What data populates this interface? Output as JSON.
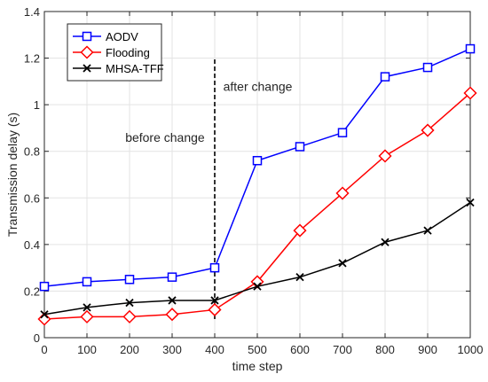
{
  "chart_data": {
    "type": "line",
    "xlabel": "time step",
    "ylabel": "Transmission delay (s)",
    "xlim": [
      0,
      1000
    ],
    "ylim": [
      0,
      1.4
    ],
    "xticks": [
      0,
      100,
      200,
      300,
      400,
      500,
      600,
      700,
      800,
      900,
      1000
    ],
    "yticks": [
      0,
      0.2,
      0.4,
      0.6,
      0.8,
      1,
      1.2,
      1.4
    ],
    "grid": true,
    "legend_position": "top-left",
    "x": [
      0,
      100,
      200,
      300,
      400,
      500,
      600,
      700,
      800,
      900,
      1000
    ],
    "series": [
      {
        "name": "AODV",
        "color": "#0000ff",
        "marker": "square",
        "values": [
          0.22,
          0.24,
          0.25,
          0.26,
          0.3,
          0.76,
          0.82,
          0.88,
          1.12,
          1.16,
          1.24
        ]
      },
      {
        "name": "Flooding",
        "color": "#ff0000",
        "marker": "diamond",
        "values": [
          0.08,
          0.09,
          0.09,
          0.1,
          0.12,
          0.24,
          0.46,
          0.62,
          0.78,
          0.89,
          1.05
        ]
      },
      {
        "name": "MHSA-TFF",
        "color": "#000000",
        "marker": "x",
        "values": [
          0.1,
          0.13,
          0.15,
          0.16,
          0.16,
          0.22,
          0.26,
          0.32,
          0.41,
          0.46,
          0.58
        ]
      }
    ],
    "annotations": [
      {
        "text": "after change",
        "x": 420,
        "y": 1.06
      },
      {
        "text": "before change",
        "x": 190,
        "y": 0.84
      }
    ],
    "change_line": {
      "x": 400,
      "y_from": 0.08,
      "y_to": 1.2
    }
  }
}
